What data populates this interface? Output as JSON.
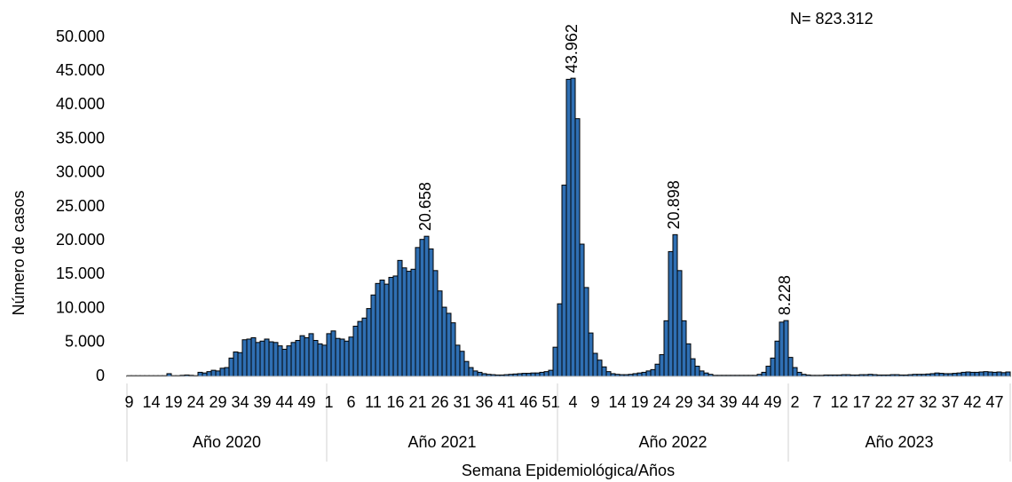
{
  "chart_data": {
    "type": "bar",
    "annotation": "N= 823.312",
    "x_label": "Semana Epidemiológica/Años",
    "y_label": "Número de casos",
    "color": "#2f6fb3",
    "edge_color": "#000000",
    "ylim": [
      0,
      50000
    ],
    "yticks": [
      0,
      {
        "value": 5000,
        "label": "5.000"
      },
      {
        "value": 10000,
        "label": "10.000"
      },
      {
        "value": 15000,
        "label": "15.000"
      },
      {
        "value": 20000,
        "label": "20.000"
      },
      {
        "value": 25000,
        "label": "25.000"
      },
      {
        "value": 30000,
        "label": "30.000"
      },
      {
        "value": 35000,
        "label": "35.000"
      },
      {
        "value": 40000,
        "label": "40.000"
      },
      {
        "value": 45000,
        "label": "45.000"
      },
      {
        "value": 50000,
        "label": "50.000"
      }
    ],
    "groups": [
      {
        "label": "Año 2020",
        "categories": [
          9,
          null,
          null,
          null,
          null,
          14,
          null,
          null,
          null,
          null,
          19,
          null,
          null,
          null,
          null,
          24,
          null,
          null,
          null,
          null,
          29,
          null,
          null,
          null,
          null,
          34,
          null,
          null,
          null,
          null,
          39,
          null,
          null,
          null,
          null,
          44,
          null,
          null,
          null,
          null,
          49,
          null,
          null,
          null,
          null
        ],
        "values": [
          100,
          100,
          100,
          100,
          100,
          100,
          100,
          100,
          100,
          400,
          100,
          100,
          150,
          200,
          150,
          100,
          600,
          500,
          700,
          900,
          800,
          1200,
          1300,
          2700,
          3600,
          3500,
          5400,
          5500,
          5700,
          5000,
          5200,
          5500,
          5100,
          5000,
          4500,
          4000,
          4500,
          5000,
          5300,
          6000,
          5700,
          6300,
          5300,
          4800,
          4600
        ]
      },
      {
        "label": "Año 2021",
        "categories": [
          1,
          null,
          null,
          null,
          null,
          6,
          null,
          null,
          null,
          null,
          11,
          null,
          null,
          null,
          null,
          16,
          null,
          null,
          null,
          null,
          21,
          null,
          null,
          null,
          null,
          26,
          null,
          null,
          null,
          null,
          31,
          null,
          null,
          null,
          null,
          36,
          null,
          null,
          null,
          null,
          41,
          null,
          null,
          null,
          null,
          46,
          null,
          null,
          null,
          null,
          51,
          null
        ],
        "values": [
          6300,
          6700,
          5600,
          5500,
          5200,
          5800,
          7400,
          8100,
          8600,
          10000,
          12000,
          13700,
          14200,
          13600,
          14600,
          14800,
          17100,
          16000,
          15500,
          15800,
          19000,
          20200,
          20658,
          18800,
          15600,
          12600,
          10200,
          9300,
          7900,
          4600,
          3700,
          2200,
          1300,
          800,
          600,
          400,
          300,
          250,
          200,
          200,
          250,
          300,
          350,
          400,
          450,
          450,
          500,
          500,
          600,
          700,
          900,
          4300
        ],
        "value_labels": [
          null,
          null,
          null,
          null,
          null,
          null,
          null,
          null,
          null,
          null,
          null,
          null,
          null,
          null,
          null,
          null,
          null,
          null,
          null,
          null,
          null,
          null,
          "20.658",
          null,
          null,
          null,
          null,
          null,
          null,
          null,
          null,
          null,
          null,
          null,
          null,
          null,
          null,
          null,
          null,
          null,
          null,
          null,
          null,
          null,
          null,
          null,
          null,
          null,
          null,
          null,
          null,
          null
        ]
      },
      {
        "label": "Año 2022",
        "categories": [
          null,
          null,
          null,
          4,
          null,
          null,
          null,
          null,
          9,
          null,
          null,
          null,
          null,
          14,
          null,
          null,
          null,
          null,
          19,
          null,
          null,
          null,
          null,
          24,
          null,
          null,
          null,
          null,
          29,
          null,
          null,
          null,
          null,
          34,
          null,
          null,
          null,
          null,
          39,
          null,
          null,
          null,
          null,
          44,
          null,
          null,
          null,
          null,
          49,
          null,
          null,
          null
        ],
        "values": [
          10700,
          28200,
          43800,
          43962,
          38000,
          19500,
          13100,
          6400,
          3400,
          2400,
          1400,
          700,
          400,
          300,
          250,
          250,
          300,
          400,
          500,
          600,
          800,
          1000,
          1800,
          3200,
          8200,
          18400,
          20898,
          15600,
          8200,
          4800,
          2600,
          1500,
          800,
          500,
          300,
          150,
          150,
          150,
          150,
          150,
          150,
          150,
          150,
          150,
          150,
          300,
          600,
          1500,
          2700,
          5200,
          8000,
          8228
        ],
        "value_labels": [
          null,
          null,
          null,
          "43.962",
          null,
          null,
          null,
          null,
          null,
          null,
          null,
          null,
          null,
          null,
          null,
          null,
          null,
          null,
          null,
          null,
          null,
          null,
          null,
          null,
          null,
          null,
          "20.898",
          null,
          null,
          null,
          null,
          null,
          null,
          null,
          null,
          null,
          null,
          null,
          null,
          null,
          null,
          null,
          null,
          null,
          null,
          null,
          null,
          null,
          null,
          null,
          null,
          "8.228"
        ]
      },
      {
        "label": "Año 2023",
        "categories": [
          null,
          2,
          null,
          null,
          null,
          null,
          7,
          null,
          null,
          null,
          null,
          12,
          null,
          null,
          null,
          null,
          17,
          null,
          null,
          null,
          null,
          22,
          null,
          null,
          null,
          null,
          27,
          null,
          null,
          null,
          null,
          32,
          null,
          null,
          null,
          null,
          37,
          null,
          null,
          null,
          null,
          42,
          null,
          null,
          null,
          null,
          47,
          null,
          null,
          null
        ],
        "values": [
          2800,
          1300,
          600,
          300,
          200,
          150,
          150,
          150,
          200,
          200,
          200,
          200,
          250,
          250,
          200,
          200,
          250,
          250,
          300,
          250,
          200,
          200,
          200,
          250,
          250,
          200,
          200,
          250,
          300,
          300,
          300,
          350,
          400,
          500,
          450,
          400,
          400,
          450,
          500,
          600,
          650,
          600,
          600,
          650,
          700,
          650,
          600,
          650,
          550,
          650
        ]
      }
    ]
  }
}
